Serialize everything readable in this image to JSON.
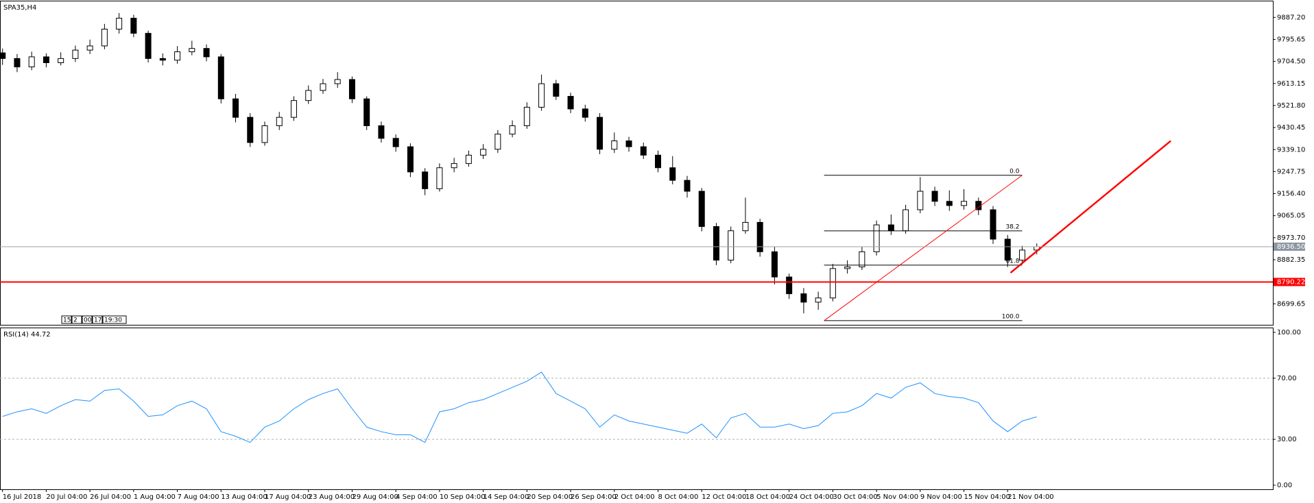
{
  "chart_data": [
    {
      "type": "candlestick",
      "title": "SPA35,H4",
      "categories": [
        "16 Jul 2018",
        null,
        null,
        "20 Jul 04:00",
        null,
        null,
        "26 Jul 04:00",
        null,
        null,
        "1 Aug 04:00",
        null,
        null,
        "7 Aug 04:00",
        null,
        null,
        "13 Aug 04:00",
        null,
        null,
        "17 Aug 04:00",
        null,
        null,
        "23 Aug 04:00",
        null,
        null,
        "29 Aug 04:00",
        null,
        null,
        "4 Sep 04:00",
        null,
        null,
        "10 Sep 04:00",
        null,
        null,
        "14 Sep 04:00",
        null,
        null,
        "20 Sep 04:00",
        null,
        null,
        "26 Sep 04:00",
        null,
        null,
        "2 Oct 04:00",
        null,
        null,
        "8 Oct 04:00",
        null,
        null,
        "12 Oct 04:00",
        null,
        null,
        "18 Oct 04:00",
        null,
        null,
        "24 Oct 04:00",
        null,
        null,
        "30 Oct 04:00",
        null,
        null,
        "5 Nov 04:00",
        null,
        null,
        "9 Nov 04:00",
        null,
        null,
        "15 Nov 04:00",
        null,
        null,
        "21 Nov 04:00",
        null,
        null
      ],
      "open": [
        9740.0,
        9716.6,
        9681.7,
        9723.5,
        9699.1,
        9716.6,
        9751.4,
        9768.8,
        9838.4,
        9883.7,
        9821.0,
        9716.6,
        9709.6,
        9744.4,
        9758.3,
        9723.5,
        9549.4,
        9472.8,
        9368.3,
        9437.9,
        9472.8,
        9542.4,
        9584.2,
        9612.1,
        9629.5,
        9549.4,
        9437.9,
        9385.7,
        9350.9,
        9246.4,
        9176.7,
        9263.8,
        9281.2,
        9316.0,
        9340.4,
        9403.1,
        9437.9,
        9514.6,
        9612.1,
        9559.8,
        9507.6,
        9472.8,
        9340.4,
        9375.2,
        9350.9,
        9316.0,
        9263.8,
        9211.6,
        9166.3,
        9020.0,
        8880.7,
        9002.6,
        9037.4,
        8915.5,
        8811.0,
        8741.4,
        8706.6,
        8724.0,
        8845.9,
        8852.8,
        8915.5,
        9027.0,
        9002.6,
        9089.7,
        9166.3,
        9124.5,
        9107.1,
        9124.5,
        9089.7,
        8967.8,
        8880.7,
        8922.5
      ],
      "high": [
        9758,
        9735,
        9745,
        9738,
        9742,
        9770,
        9795,
        9860,
        9905,
        9898,
        9832,
        9738,
        9768,
        9790,
        9775,
        9735,
        9570,
        9490,
        9455,
        9495,
        9560,
        9605,
        9632,
        9660,
        9642,
        9560,
        9455,
        9402,
        9365,
        9262,
        9282,
        9305,
        9335,
        9362,
        9420,
        9460,
        9535,
        9650,
        9628,
        9575,
        9525,
        9490,
        9410,
        9392,
        9368,
        9335,
        9312,
        9230,
        9180,
        9035,
        9020,
        9140,
        9052,
        8935,
        8825,
        8765,
        8750,
        8865,
        8880,
        8935,
        9045,
        9070,
        9110,
        9225,
        9185,
        9170,
        9175,
        9140,
        9105,
        8985,
        8940,
        8950
      ],
      "low": [
        9690,
        9660,
        9668,
        9680,
        9688,
        9702,
        9735,
        9755,
        9820,
        9805,
        9700,
        9688,
        9695,
        9730,
        9705,
        9530,
        9452,
        9350,
        9355,
        9420,
        9458,
        9528,
        9570,
        9595,
        9532,
        9420,
        9368,
        9330,
        9225,
        9150,
        9165,
        9245,
        9268,
        9300,
        9325,
        9390,
        9425,
        9500,
        9545,
        9490,
        9455,
        9320,
        9325,
        9330,
        9300,
        9245,
        9195,
        9140,
        9000,
        8860,
        8868,
        8990,
        8895,
        8780,
        8720,
        8660,
        8675,
        8710,
        8825,
        8840,
        8900,
        8985,
        8990,
        9075,
        9105,
        9085,
        9090,
        9068,
        8948,
        8852,
        8868,
        8905
      ],
      "close": [
        9716.6,
        9681.7,
        9723.5,
        9699.1,
        9716.6,
        9751.4,
        9768.8,
        9838.4,
        9883.7,
        9821.0,
        9716.6,
        9709.6,
        9744.4,
        9758.3,
        9723.5,
        9549.4,
        9472.8,
        9368.3,
        9437.9,
        9472.8,
        9542.4,
        9584.2,
        9612.1,
        9629.5,
        9549.4,
        9437.9,
        9385.7,
        9350.9,
        9246.4,
        9176.7,
        9263.8,
        9281.2,
        9316.0,
        9340.4,
        9403.1,
        9437.9,
        9514.6,
        9612.1,
        9559.8,
        9507.6,
        9472.8,
        9340.4,
        9375.2,
        9350.9,
        9316.0,
        9263.8,
        9211.6,
        9166.3,
        9020.0,
        8880.7,
        9002.6,
        9037.4,
        8915.5,
        8811.0,
        8741.4,
        8706.6,
        8724.0,
        8845.9,
        8852.8,
        8915.5,
        9027.0,
        9002.6,
        9089.7,
        9166.3,
        9124.5,
        9107.1,
        9124.5,
        9089.7,
        8967.8,
        8880.7,
        8922.5,
        8936.5
      ],
      "up_color": "#ffffff",
      "down_color": "#000000",
      "wick_color": "#000000",
      "ylim": [
        8612.6,
        9953.4
      ],
      "yticks": [
        {
          "value": 9887.2,
          "label": "9887.20"
        },
        9795.65,
        {
          "value": 9704.5,
          "label": "9704.50"
        },
        9613.15,
        {
          "value": 9521.8,
          "label": "9521.80"
        },
        9430.45,
        {
          "value": 9339.1,
          "label": "9339.10"
        },
        9247.75,
        {
          "value": 9156.4,
          "label": "9156.40"
        },
        9065.05,
        {
          "value": 8973.7,
          "label": "8973.70"
        },
        8882.35,
        8699.65
      ],
      "price_lines": [
        {
          "value": 8936.5,
          "label": "8936.50",
          "color": "#a0a0a0",
          "box_color": "#8c96a0"
        },
        {
          "value": 8790.22,
          "label": "8790.22",
          "color": "#ff0000",
          "box_color": "#ff0000"
        }
      ],
      "fibonacci": {
        "start": 56.4,
        "end": 70,
        "color": "#000000",
        "levels": [
          {
            "value": 9232.5,
            "label": "0.0"
          },
          {
            "value": 9002.3,
            "label": "38.2"
          },
          {
            "value": 8860.1,
            "label": "61.8"
          },
          {
            "value": 8629.9,
            "label": "100.0"
          }
        ]
      },
      "trendlines": [
        {
          "x": [
            56.4,
            70
          ],
          "y": [
            8629.9,
            9232.5
          ],
          "color": "#ff0000",
          "width": 1
        },
        {
          "x": [
            69.2,
            80.2
          ],
          "y": [
            8828.4,
            9375.2
          ],
          "color": "#ff0000",
          "width": 2.5
        }
      ],
      "time_box": [
        "15:",
        "2",
        "00",
        "17",
        "19:30"
      ]
    },
    {
      "type": "line",
      "title": "RSI(14) 44.72",
      "color": "#1e90ff",
      "values": [
        45,
        48,
        50,
        47,
        52,
        56,
        55,
        62,
        63,
        55,
        45,
        46,
        52,
        55,
        50,
        35,
        32,
        28,
        38,
        42,
        50,
        56,
        60,
        63,
        50,
        38,
        35,
        33,
        33,
        28,
        48,
        50,
        54,
        56,
        60,
        64,
        68,
        74,
        60,
        55,
        50,
        38,
        46,
        42,
        40,
        38,
        36,
        34,
        40,
        31,
        44,
        47,
        38,
        38,
        40,
        37,
        39,
        47,
        48,
        52,
        60,
        57,
        64,
        67,
        60,
        58,
        57,
        54,
        42,
        35,
        42,
        44.72
      ],
      "ylim": [
        0,
        100
      ],
      "yticks": [
        {
          "value": 100,
          "label": "100.00"
        },
        {
          "value": 70,
          "label": "70.00"
        },
        {
          "value": 30,
          "label": "30.00"
        },
        {
          "value": 0,
          "label": "0.00"
        }
      ]
    }
  ]
}
